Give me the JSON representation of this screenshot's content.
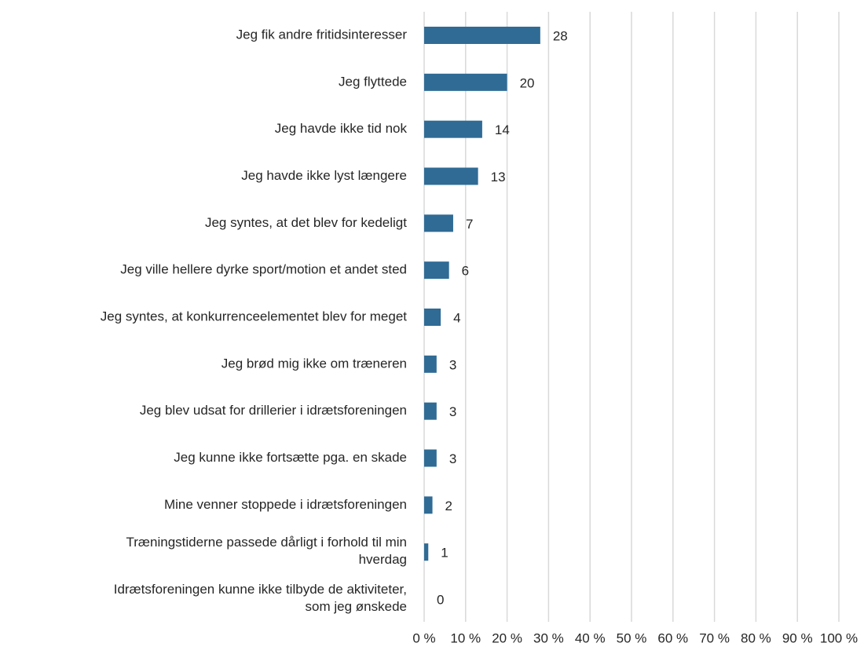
{
  "chart_data": {
    "type": "barh",
    "categories": [
      "Jeg fik andre fritidsinteresser",
      "Jeg flyttede",
      "Jeg havde ikke tid nok",
      "Jeg havde ikke lyst længere",
      "Jeg syntes, at det blev for kedeligt",
      "Jeg ville hellere dyrke sport/motion et andet sted",
      "Jeg syntes, at konkurrenceelementet blev for meget",
      "Jeg brød mig ikke om træneren",
      "Jeg blev udsat for drillerier i idrætsforeningen",
      "Jeg kunne ikke fortsætte pga. en skade",
      "Mine venner stoppede i idrætsforeningen",
      "Træningstiderne passede dårligt i forhold til min\nhverdag",
      "Idrætsforeningen kunne ikke tilbyde de aktiviteter,\nsom jeg ønskede"
    ],
    "values": [
      28,
      20,
      14,
      13,
      7,
      6,
      4,
      3,
      3,
      3,
      2,
      1,
      0
    ],
    "color": "#2f6b95",
    "xlim": [
      0,
      100
    ],
    "xticks": [
      {
        "value": 0,
        "label": "0 %"
      },
      {
        "value": 10,
        "label": "10 %"
      },
      {
        "value": 20,
        "label": "20 %"
      },
      {
        "value": 30,
        "label": "30 %"
      },
      {
        "value": 40,
        "label": "40 %"
      },
      {
        "value": 50,
        "label": "50 %"
      },
      {
        "value": 60,
        "label": "60 %"
      },
      {
        "value": 70,
        "label": "70 %"
      },
      {
        "value": 80,
        "label": "80 %"
      },
      {
        "value": 90,
        "label": "90 %"
      },
      {
        "value": 100,
        "label": "100 %"
      }
    ],
    "grid": true
  }
}
